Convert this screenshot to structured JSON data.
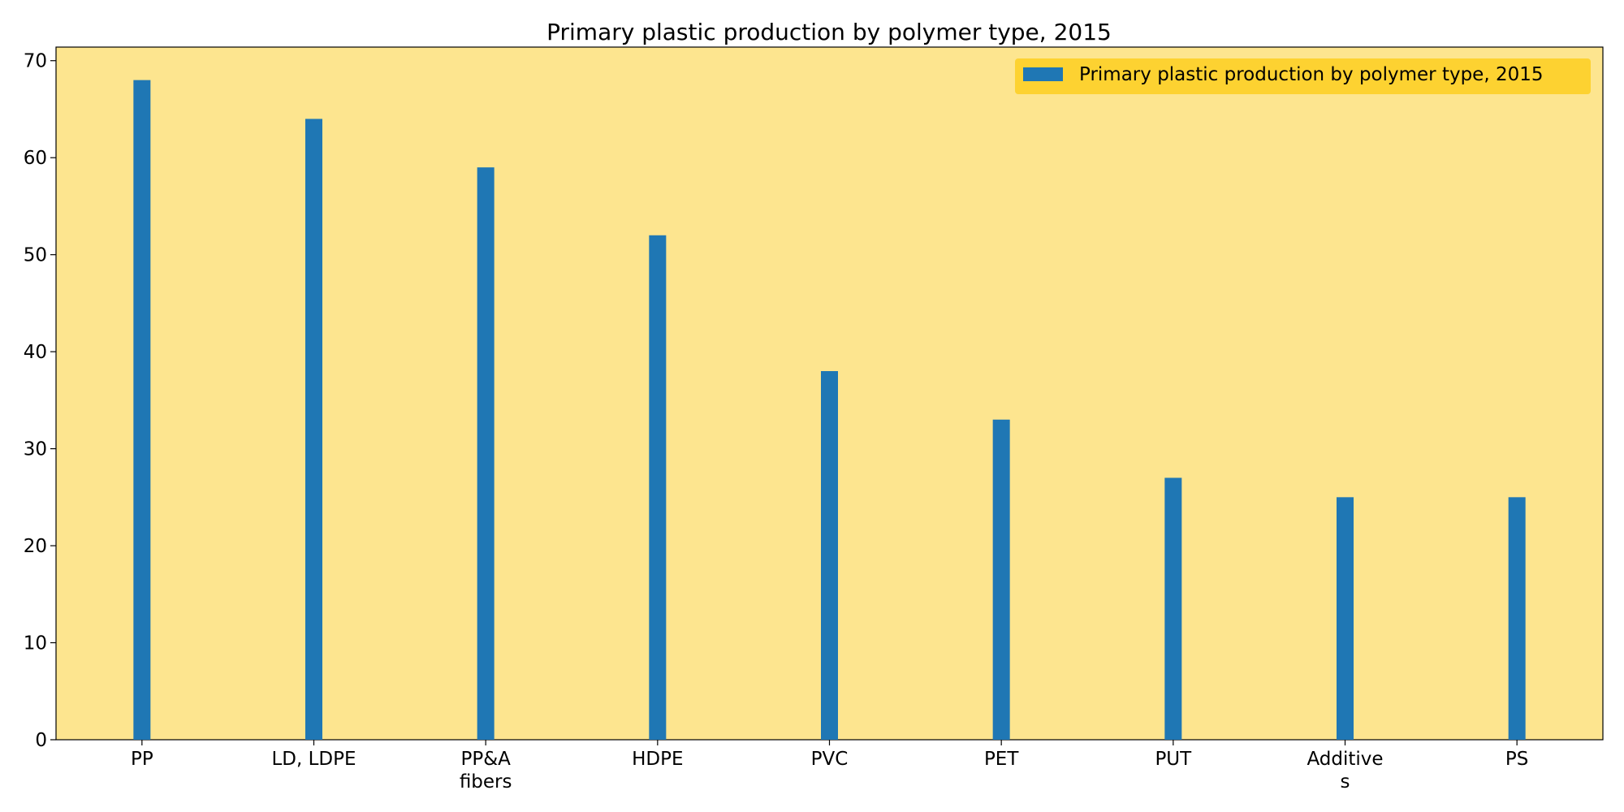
{
  "chart_data": {
    "type": "bar",
    "title": "Primary plastic production by polymer type, 2015",
    "xlabel": "",
    "ylabel": "",
    "categories": [
      [
        "PP"
      ],
      [
        "LD, LDPE"
      ],
      [
        "PP&A",
        "fibers"
      ],
      [
        "HDPE"
      ],
      [
        "PVC"
      ],
      [
        "PET"
      ],
      [
        "PUT"
      ],
      [
        "Additive",
        "s"
      ],
      [
        "PS"
      ]
    ],
    "series": [
      {
        "name": "Primary plastic production by polymer type, 2015",
        "values": [
          68,
          64,
          59,
          52,
          38,
          33,
          27,
          25,
          25
        ]
      }
    ],
    "ylim": [
      0,
      71.4
    ],
    "yticks": [
      0,
      10,
      20,
      30,
      40,
      50,
      60,
      70
    ],
    "grid": false,
    "legend_position": "top-right",
    "colors": {
      "bar": "#1f77b4",
      "plot_background": "#fde58f",
      "legend_background": "#fdd231"
    }
  }
}
